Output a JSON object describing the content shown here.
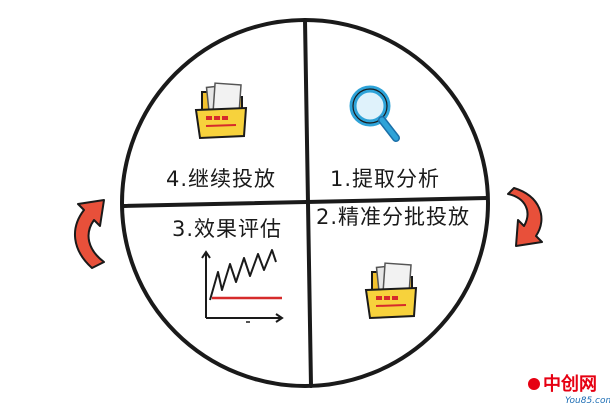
{
  "quadrants": {
    "top_left": {
      "label": "4.继续投放",
      "icon": "folder-icon"
    },
    "top_right": {
      "label": "1.提取分析",
      "icon": "magnifier-icon"
    },
    "bottom_left": {
      "label": "3.效果评估",
      "icon": "line-chart-icon"
    },
    "bottom_right": {
      "label": "2.精准分批投放",
      "icon": "folder-icon"
    }
  },
  "cycle_arrows": {
    "left": "circular-arrow-icon",
    "right": "circular-arrow-icon"
  },
  "watermark": {
    "title": "中创网",
    "site": "You85.com"
  },
  "colors": {
    "outline": "#1a1a1a",
    "arrow": "#e8503a",
    "folder": "#f7d23c",
    "magnifier": "#2ea3d8",
    "chart_baseline": "#d62b2b",
    "watermark": "#e60012"
  }
}
